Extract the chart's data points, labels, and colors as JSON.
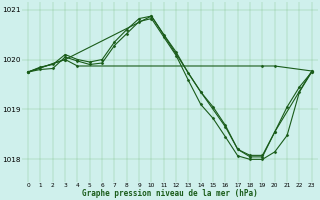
{
  "background_color": "#cff0ec",
  "grid_color": "#5aaa5a",
  "line_color": "#1a5c1a",
  "marker_color": "#1a5c1a",
  "title": "Graphe pression niveau de la mer (hPa)",
  "xlim": [
    -0.5,
    23.5
  ],
  "ylim": [
    1017.55,
    1021.15
  ],
  "yticks": [
    1018,
    1019,
    1020,
    1021
  ],
  "xticks": [
    0,
    1,
    2,
    3,
    4,
    5,
    6,
    7,
    8,
    9,
    10,
    11,
    12,
    13,
    14,
    15,
    16,
    17,
    18,
    19,
    20,
    21,
    22,
    23
  ],
  "series": [
    {
      "x": [
        0,
        1,
        2,
        3,
        4,
        5,
        6,
        7,
        8,
        9,
        10,
        11,
        12,
        13,
        14,
        15,
        16,
        17,
        18,
        19,
        20,
        21,
        22,
        23
      ],
      "y": [
        1019.75,
        1019.85,
        1019.9,
        1020.1,
        1020.0,
        1019.95,
        1020.0,
        1020.35,
        1020.6,
        1020.82,
        1020.87,
        1020.5,
        1020.15,
        1019.72,
        1019.35,
        1019.05,
        1018.68,
        1018.2,
        1018.08,
        1018.08,
        1018.55,
        1019.05,
        1019.45,
        1019.75
      ]
    },
    {
      "x": [
        0,
        1,
        2,
        3,
        4,
        5,
        6,
        7,
        8,
        9,
        10,
        11,
        12,
        13,
        14,
        15,
        16,
        17,
        18,
        19,
        20,
        21,
        22,
        23
      ],
      "y": [
        1019.75,
        1019.8,
        1019.82,
        1020.05,
        1019.97,
        1019.9,
        1019.93,
        1020.28,
        1020.52,
        1020.76,
        1020.82,
        1020.45,
        1020.08,
        1019.58,
        1019.1,
        1018.82,
        1018.45,
        1018.07,
        1018.0,
        1018.0,
        1018.15,
        1018.48,
        1019.35,
        1019.75
      ]
    },
    {
      "x": [
        0,
        3,
        4,
        19,
        20,
        23
      ],
      "y": [
        1019.75,
        1020.0,
        1019.87,
        1019.87,
        1019.87,
        1019.77
      ]
    },
    {
      "x": [
        0,
        3,
        10,
        14,
        16,
        17,
        18,
        19,
        20,
        23
      ],
      "y": [
        1019.75,
        1020.0,
        1020.87,
        1019.35,
        1018.65,
        1018.2,
        1018.05,
        1018.05,
        1018.55,
        1019.77
      ]
    }
  ]
}
